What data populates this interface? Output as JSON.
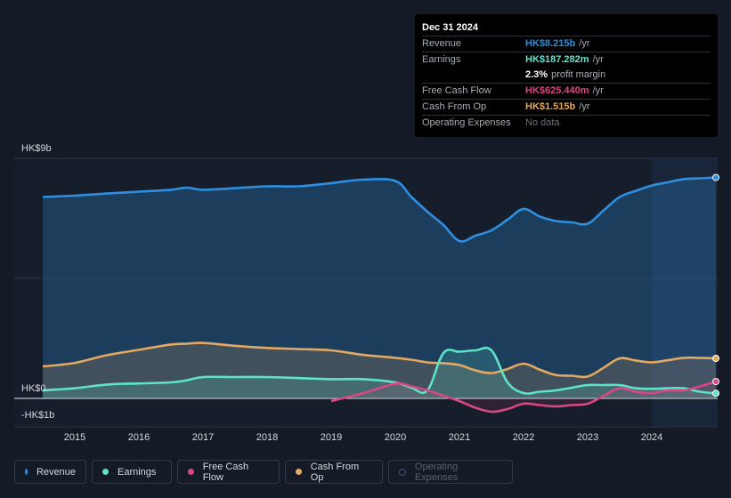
{
  "tooltip": {
    "date": "Dec 31 2024",
    "revenue": {
      "label": "Revenue",
      "value": "HK$8.215b",
      "unit": "/yr"
    },
    "earnings": {
      "label": "Earnings",
      "value": "HK$187.282m",
      "unit": "/yr"
    },
    "margin": {
      "value": "2.3%",
      "text": "profit margin"
    },
    "fcf": {
      "label": "Free Cash Flow",
      "value": "HK$625.440m",
      "unit": "/yr"
    },
    "cfo": {
      "label": "Cash From Op",
      "value": "HK$1.515b",
      "unit": "/yr"
    },
    "opex": {
      "label": "Operating Expenses",
      "value": "No data"
    }
  },
  "colors": {
    "revenue": "#2e8fe0",
    "earnings": "#5fe3c8",
    "fcf": "#d94883",
    "cfo": "#e3a861",
    "opex": "#4b4f80"
  },
  "legend": [
    {
      "key": "revenue",
      "label": "Revenue",
      "active": true
    },
    {
      "key": "earnings",
      "label": "Earnings",
      "active": true
    },
    {
      "key": "fcf",
      "label": "Free Cash Flow",
      "active": true
    },
    {
      "key": "cfo",
      "label": "Cash From Op",
      "active": true
    },
    {
      "key": "opex",
      "label": "Operating Expenses",
      "active": false
    }
  ],
  "chart_data": {
    "type": "area",
    "title": "",
    "y_unit": "HK$ billions",
    "ylim": [
      -1,
      9
    ],
    "y_labels": [
      {
        "value": 9,
        "text": "HK$9b"
      },
      {
        "value": 0,
        "text": "HK$0"
      },
      {
        "value": -1,
        "text": "-HK$1b"
      }
    ],
    "xlim": [
      2014.5,
      2025.0
    ],
    "x_ticks": [
      2015,
      2016,
      2017,
      2018,
      2019,
      2020,
      2021,
      2022,
      2023,
      2024
    ],
    "forecast_start": 2024.0,
    "series": [
      {
        "key": "revenue",
        "name": "Revenue",
        "x": [
          2014.5,
          2015.0,
          2015.5,
          2016.0,
          2016.5,
          2016.75,
          2017.0,
          2017.5,
          2018.0,
          2018.5,
          2019.0,
          2019.5,
          2020.0,
          2020.25,
          2020.5,
          2020.75,
          2021.0,
          2021.25,
          2021.5,
          2021.75,
          2022.0,
          2022.25,
          2022.5,
          2022.75,
          2023.0,
          2023.25,
          2023.5,
          2023.75,
          2024.0,
          2024.25,
          2024.5,
          2024.75,
          2025.0
        ],
        "values": [
          7.55,
          7.6,
          7.68,
          7.75,
          7.82,
          7.9,
          7.82,
          7.88,
          7.95,
          7.95,
          8.07,
          8.2,
          8.15,
          7.55,
          7.0,
          6.5,
          5.9,
          6.1,
          6.3,
          6.7,
          7.1,
          6.82,
          6.65,
          6.6,
          6.55,
          7.05,
          7.55,
          7.78,
          7.98,
          8.1,
          8.22,
          8.25,
          8.28
        ]
      },
      {
        "key": "earnings",
        "name": "Earnings",
        "x": [
          2014.5,
          2015.0,
          2015.5,
          2016.0,
          2016.5,
          2016.75,
          2017.0,
          2017.5,
          2018.0,
          2018.5,
          2019.0,
          2019.5,
          2020.0,
          2020.25,
          2020.5,
          2020.75,
          2021.0,
          2021.25,
          2021.5,
          2021.75,
          2022.0,
          2022.25,
          2022.5,
          2022.75,
          2023.0,
          2023.25,
          2023.5,
          2023.75,
          2024.0,
          2024.25,
          2024.5,
          2024.75,
          2025.0
        ],
        "values": [
          0.3,
          0.38,
          0.52,
          0.56,
          0.6,
          0.68,
          0.8,
          0.8,
          0.8,
          0.76,
          0.72,
          0.72,
          0.6,
          0.4,
          0.3,
          1.7,
          1.75,
          1.8,
          1.8,
          0.6,
          0.2,
          0.25,
          0.3,
          0.4,
          0.5,
          0.5,
          0.5,
          0.38,
          0.36,
          0.38,
          0.38,
          0.25,
          0.19
        ]
      },
      {
        "key": "fcf",
        "name": "Free Cash Flow",
        "x": [
          2019.0,
          2019.5,
          2020.0,
          2020.25,
          2020.5,
          2020.75,
          2021.0,
          2021.25,
          2021.5,
          2021.75,
          2022.0,
          2022.25,
          2022.5,
          2022.75,
          2023.0,
          2023.25,
          2023.5,
          2023.75,
          2024.0,
          2024.25,
          2024.5,
          2024.75,
          2025.0
        ],
        "values": [
          -0.1,
          0.2,
          0.55,
          0.45,
          0.3,
          0.1,
          -0.1,
          -0.35,
          -0.5,
          -0.4,
          -0.2,
          -0.25,
          -0.3,
          -0.25,
          -0.2,
          0.1,
          0.38,
          0.25,
          0.2,
          0.3,
          0.3,
          0.45,
          0.63
        ]
      },
      {
        "key": "cfo",
        "name": "Cash From Op",
        "x": [
          2014.5,
          2015.0,
          2015.5,
          2016.0,
          2016.5,
          2016.75,
          2017.0,
          2017.5,
          2018.0,
          2018.5,
          2019.0,
          2019.5,
          2020.0,
          2020.25,
          2020.5,
          2020.75,
          2021.0,
          2021.25,
          2021.5,
          2021.75,
          2022.0,
          2022.25,
          2022.5,
          2022.75,
          2023.0,
          2023.25,
          2023.5,
          2023.75,
          2024.0,
          2024.25,
          2024.5,
          2024.75,
          2025.0
        ],
        "values": [
          1.2,
          1.33,
          1.62,
          1.82,
          2.02,
          2.05,
          2.08,
          1.97,
          1.89,
          1.85,
          1.8,
          1.63,
          1.52,
          1.45,
          1.35,
          1.32,
          1.25,
          1.05,
          0.95,
          1.1,
          1.3,
          1.08,
          0.88,
          0.85,
          0.82,
          1.15,
          1.5,
          1.42,
          1.35,
          1.43,
          1.52,
          1.52,
          1.5
        ]
      }
    ]
  }
}
